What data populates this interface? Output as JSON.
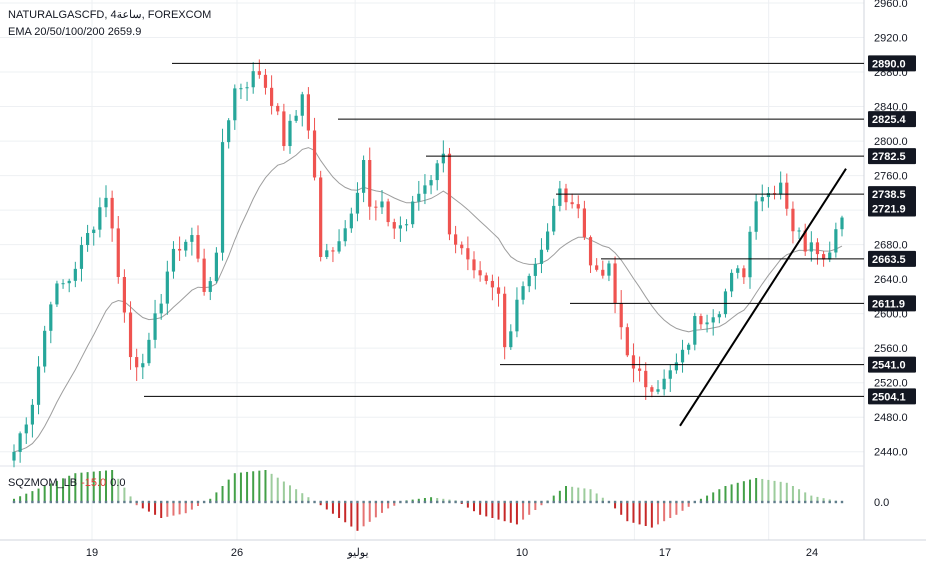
{
  "header": {
    "symbol_line": "NATURALGASCFD, 4ساعة, FOREXCOM",
    "ema_line": "EMA 20/50/100/200  2659.9"
  },
  "oscillator": {
    "name": "SQZMOM_LB",
    "value_a": "-15.0",
    "value_b": "0.0",
    "zero_tick": "0.0"
  },
  "colors": {
    "bull": "#26a69a",
    "bear": "#ef5350",
    "bull_hist": "#43a047",
    "bear_hist": "#c62828",
    "level_line": "#000000",
    "ema_line": "#9e9e9e",
    "trendline": "#000000",
    "label_bg": "#131722",
    "current_label_bg": "#131722",
    "grid": "#eef0f3"
  },
  "chart_data": {
    "type": "candlestick",
    "y_axis_ticks": [
      "2960.0",
      "2920.0",
      "2880.0",
      "2840.0",
      "2800.0",
      "2760.0",
      "2720.0",
      "2680.0",
      "2640.0",
      "2600.0",
      "2560.0",
      "2520.0",
      "2480.0",
      "2440.0"
    ],
    "ylim": [
      2420,
      2960
    ],
    "x_axis_ticks": [
      "19",
      "26",
      "يوليو",
      "10",
      "17",
      "24"
    ],
    "grid": true,
    "horizontal_levels": [
      "2890.0",
      "2825.4",
      "2782.5",
      "2738.5",
      "2663.5",
      "2611.9",
      "2541.0",
      "2504.1"
    ],
    "current_price_label": "2721.9",
    "ema_last": 2659.9,
    "price_path": [
      [
        0,
        2440
      ],
      [
        3,
        2500
      ],
      [
        6,
        2620
      ],
      [
        9,
        2640
      ],
      [
        12,
        2690
      ],
      [
        15,
        2740
      ],
      [
        17,
        2650
      ],
      [
        19,
        2550
      ],
      [
        20,
        2545
      ],
      [
        22,
        2560
      ],
      [
        25,
        2650
      ],
      [
        27,
        2680
      ],
      [
        29,
        2690
      ],
      [
        31,
        2630
      ],
      [
        33,
        2660
      ],
      [
        34,
        2800
      ],
      [
        36,
        2860
      ],
      [
        38,
        2870
      ],
      [
        40,
        2880
      ],
      [
        42,
        2850
      ],
      [
        44,
        2800
      ],
      [
        46,
        2830
      ],
      [
        47,
        2860
      ],
      [
        49,
        2760
      ],
      [
        50,
        2660
      ],
      [
        52,
        2680
      ],
      [
        54,
        2700
      ],
      [
        56,
        2750
      ],
      [
        57,
        2780
      ],
      [
        58,
        2720
      ],
      [
        60,
        2720
      ],
      [
        62,
        2700
      ],
      [
        64,
        2705
      ],
      [
        66,
        2740
      ],
      [
        68,
        2760
      ],
      [
        69,
        2780
      ],
      [
        70,
        2780
      ],
      [
        71,
        2700
      ],
      [
        73,
        2670
      ],
      [
        75,
        2640
      ],
      [
        77,
        2630
      ],
      [
        79,
        2620
      ],
      [
        80,
        2560
      ],
      [
        82,
        2620
      ],
      [
        84,
        2650
      ],
      [
        86,
        2670
      ],
      [
        87,
        2690
      ],
      [
        88,
        2730
      ],
      [
        90,
        2740
      ],
      [
        92,
        2720
      ],
      [
        93,
        2690
      ],
      [
        95,
        2640
      ],
      [
        97,
        2650
      ],
      [
        98,
        2610
      ],
      [
        100,
        2560
      ],
      [
        101,
        2530
      ],
      [
        103,
        2520
      ],
      [
        105,
        2520
      ],
      [
        106,
        2520
      ],
      [
        107,
        2530
      ],
      [
        109,
        2550
      ],
      [
        111,
        2590
      ],
      [
        113,
        2600
      ],
      [
        115,
        2610
      ],
      [
        117,
        2640
      ],
      [
        119,
        2650
      ],
      [
        121,
        2740
      ],
      [
        123,
        2740
      ],
      [
        125,
        2755
      ],
      [
        127,
        2700
      ],
      [
        129,
        2680
      ],
      [
        130,
        2690
      ],
      [
        131,
        2680
      ],
      [
        132,
        2660
      ],
      [
        134,
        2700
      ],
      [
        135,
        2720
      ]
    ],
    "trendline": [
      [
        2470,
        2515
      ],
      [
        2520,
        2768
      ]
    ],
    "oscillator_curve": [
      [
        0,
        0.1
      ],
      [
        10,
        0.9
      ],
      [
        16,
        1.0
      ],
      [
        20,
        -0.1
      ],
      [
        24,
        -0.5
      ],
      [
        28,
        -0.35
      ],
      [
        32,
        0.1
      ],
      [
        36,
        0.9
      ],
      [
        41,
        1.0
      ],
      [
        46,
        0.4
      ],
      [
        50,
        -0.1
      ],
      [
        56,
        -0.9
      ],
      [
        61,
        -0.2
      ],
      [
        64,
        0.05
      ],
      [
        68,
        0.15
      ],
      [
        72,
        0.05
      ],
      [
        76,
        -0.4
      ],
      [
        82,
        -0.7
      ],
      [
        86,
        -0.1
      ],
      [
        90,
        0.5
      ],
      [
        94,
        0.4
      ],
      [
        97,
        0.0
      ],
      [
        100,
        -0.6
      ],
      [
        104,
        -0.8
      ],
      [
        108,
        -0.4
      ],
      [
        112,
        0.1
      ],
      [
        116,
        0.5
      ],
      [
        121,
        0.75
      ],
      [
        126,
        0.6
      ],
      [
        130,
        0.2
      ],
      [
        135,
        0.0
      ]
    ]
  }
}
